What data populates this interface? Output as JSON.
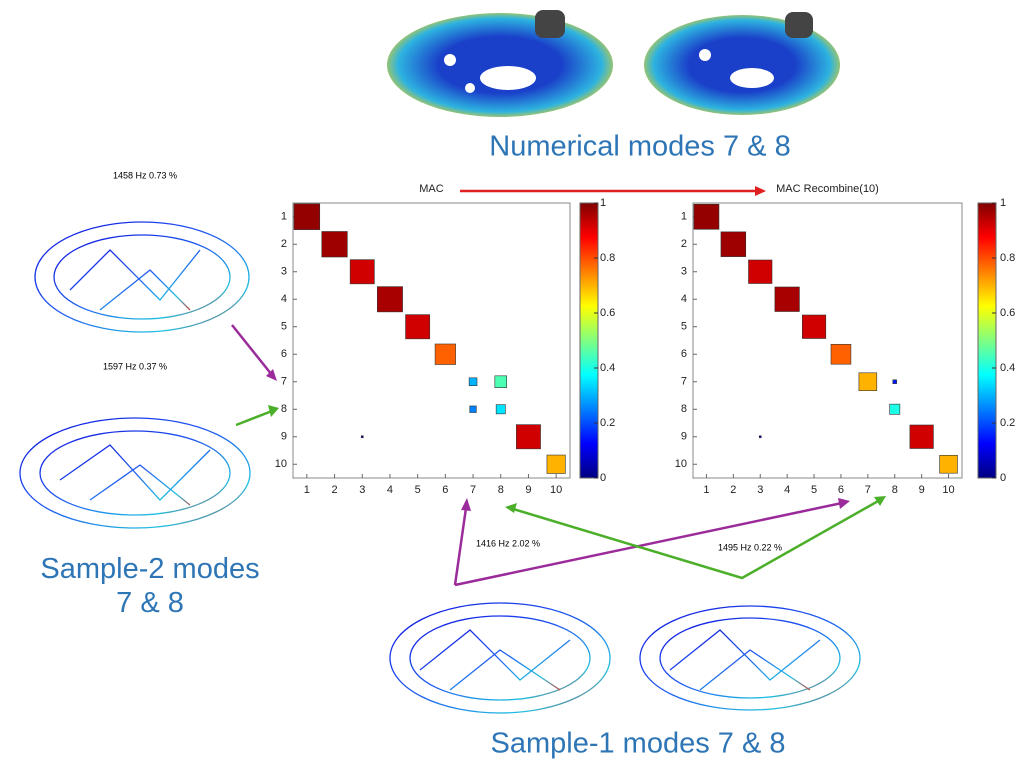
{
  "chart_data": [
    {
      "type": "matrix",
      "title": "MAC",
      "xlim": [
        0.5,
        10.5
      ],
      "ylim": [
        0.5,
        10.5
      ],
      "y_inverted": true,
      "xticks": [
        1,
        2,
        3,
        4,
        5,
        6,
        7,
        8,
        9,
        10
      ],
      "yticks": [
        1,
        2,
        3,
        4,
        5,
        6,
        7,
        8,
        9,
        10
      ],
      "x": [
        1,
        2,
        3,
        4,
        5,
        6,
        7,
        8,
        7,
        8,
        9,
        10,
        3
      ],
      "y": [
        1,
        2,
        3,
        4,
        5,
        6,
        7,
        7,
        8,
        8,
        9,
        10,
        9
      ],
      "values": [
        0.98,
        0.97,
        0.92,
        0.96,
        0.92,
        0.78,
        0.3,
        0.45,
        0.25,
        0.35,
        0.92,
        0.7,
        0.05
      ],
      "colormap": "jet",
      "clim": [
        0,
        1
      ],
      "cticks": [
        0,
        0.2,
        0.4,
        0.6,
        0.8,
        1
      ]
    },
    {
      "type": "matrix",
      "title": "MAC Recombine(10)",
      "xlim": [
        0.5,
        10.5
      ],
      "ylim": [
        0.5,
        10.5
      ],
      "y_inverted": true,
      "xticks": [
        1,
        2,
        3,
        4,
        5,
        6,
        7,
        8,
        9,
        10
      ],
      "yticks": [
        1,
        2,
        3,
        4,
        5,
        6,
        7,
        8,
        9,
        10
      ],
      "x": [
        1,
        2,
        3,
        4,
        5,
        6,
        7,
        8,
        8,
        9,
        10,
        3
      ],
      "y": [
        1,
        2,
        3,
        4,
        5,
        6,
        7,
        7,
        8,
        9,
        10,
        9
      ],
      "values": [
        0.98,
        0.97,
        0.92,
        0.96,
        0.92,
        0.78,
        0.7,
        0.15,
        0.4,
        0.92,
        0.7,
        0.05
      ],
      "colormap": "jet",
      "clim": [
        0,
        1
      ],
      "cticks": [
        0,
        0.2,
        0.4,
        0.6,
        0.8,
        1
      ]
    }
  ],
  "captions": {
    "numerical": "Numerical modes 7 & 8",
    "sample2": "Sample-2 modes 7 & 8",
    "sample1": "Sample-1 modes 7 & 8"
  },
  "annotations": [
    "1458 Hz 0.73 %",
    "1597 Hz 0.37 %",
    "1416 Hz 2.02 %",
    "1495 Hz 0.22 %"
  ]
}
